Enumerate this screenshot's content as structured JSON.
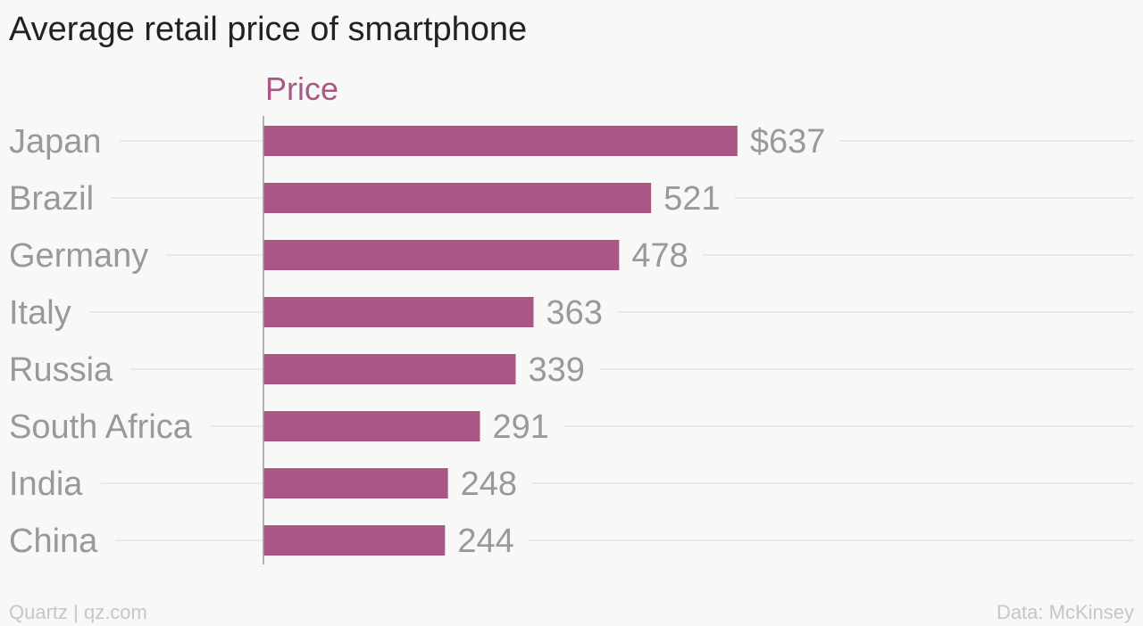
{
  "title": "Average retail price of smartphone",
  "footer": {
    "credit": "Quartz | qz.com",
    "source": "Data: McKinsey"
  },
  "colors": {
    "bar": "#a95886",
    "series_label": "#a95886",
    "category_label": "#999999",
    "value_label": "#999999",
    "gridline": "#e4e4e4",
    "axis": "#9a9a9a"
  },
  "chart_data": {
    "type": "bar",
    "orientation": "horizontal",
    "categories": [
      "Japan",
      "Brazil",
      "Germany",
      "Italy",
      "Russia",
      "South Africa",
      "India",
      "China"
    ],
    "series": [
      {
        "name": "Price",
        "values": [
          637,
          521,
          478,
          363,
          339,
          291,
          248,
          244
        ]
      }
    ],
    "value_labels": [
      "$637",
      "521",
      "478",
      "363",
      "339",
      "291",
      "248",
      "244"
    ],
    "title": "Average retail price of smartphone",
    "xlim": [
      0,
      1170
    ],
    "grid": true
  }
}
